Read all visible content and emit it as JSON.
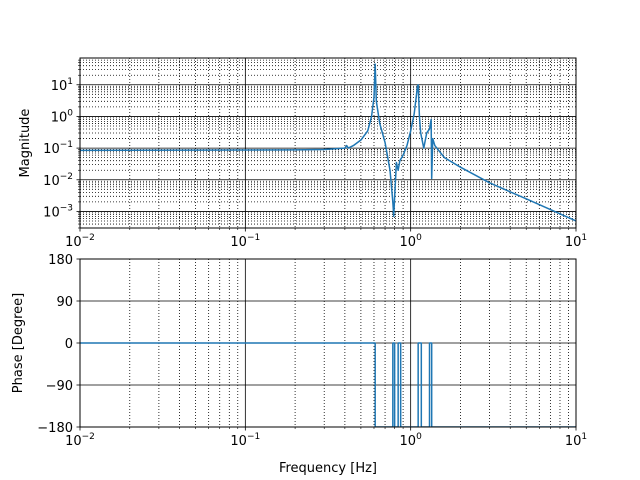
{
  "chart_data": [
    {
      "type": "line",
      "title": "",
      "xlabel": "",
      "ylabel": "Magnitude",
      "xscale": "log",
      "yscale": "log",
      "xlim": [
        0.01,
        10
      ],
      "ylim": [
        0.0003,
        70
      ],
      "grid": "major and minor (solid major, dotted minor)",
      "color": "#1f77b4",
      "x_ticks": [
        "10^-2",
        "10^-1",
        "10^0",
        "10^1"
      ],
      "y_ticks": [
        "10^-3",
        "10^-2",
        "10^-1",
        "10^0",
        "10^1"
      ],
      "series": [
        {
          "x": [
            0.01,
            0.05,
            0.1,
            0.2,
            0.3,
            0.4,
            0.41,
            0.42,
            0.45,
            0.5,
            0.55,
            0.58,
            0.6,
            0.61,
            0.62,
            0.65,
            0.7,
            0.75,
            0.78,
            0.79,
            0.8,
            0.82,
            0.84,
            0.86,
            0.9,
            0.95,
            1.0,
            1.05,
            1.1,
            1.11,
            1.13,
            1.15,
            1.2,
            1.25,
            1.3,
            1.33,
            1.34,
            1.36,
            1.4,
            1.6,
            2.0,
            3.0,
            5.0,
            10.0
          ],
          "y": [
            0.085,
            0.086,
            0.087,
            0.088,
            0.09,
            0.1,
            0.12,
            0.1,
            0.12,
            0.18,
            0.35,
            1.0,
            4.0,
            45,
            3.0,
            0.6,
            0.15,
            0.02,
            0.002,
            0.0007,
            0.003,
            0.035,
            0.02,
            0.04,
            0.06,
            0.12,
            0.35,
            1.2,
            9.0,
            10.0,
            1.0,
            0.3,
            0.1,
            0.3,
            0.4,
            0.8,
            0.011,
            0.2,
            0.12,
            0.05,
            0.025,
            0.008,
            0.0025,
            0.0005
          ]
        }
      ]
    },
    {
      "type": "line",
      "title": "",
      "xlabel": "Frequency [Hz]",
      "ylabel": "Phase [Degree]",
      "xscale": "log",
      "yscale": "linear",
      "xlim": [
        0.01,
        10
      ],
      "ylim": [
        -180,
        180
      ],
      "grid": "major and minor (solid major, dotted minor)",
      "color": "#1f77b4",
      "x_ticks": [
        "10^-2",
        "10^-1",
        "10^0",
        "10^1"
      ],
      "y_ticks": [
        "180",
        "90",
        "0",
        "−90",
        "−180"
      ],
      "series": [
        {
          "x": [
            0.01,
            0.61,
            0.61,
            0.78,
            0.78,
            0.8,
            0.8,
            0.84,
            0.84,
            0.87,
            0.87,
            1.11,
            1.11,
            1.16,
            1.16,
            1.3,
            1.3,
            1.34,
            1.34,
            10
          ],
          "y": [
            0,
            0,
            -180,
            -180,
            0,
            0,
            -180,
            -180,
            0,
            0,
            -180,
            -180,
            0,
            0,
            -180,
            -180,
            0,
            0,
            -180,
            -180
          ]
        }
      ]
    }
  ]
}
